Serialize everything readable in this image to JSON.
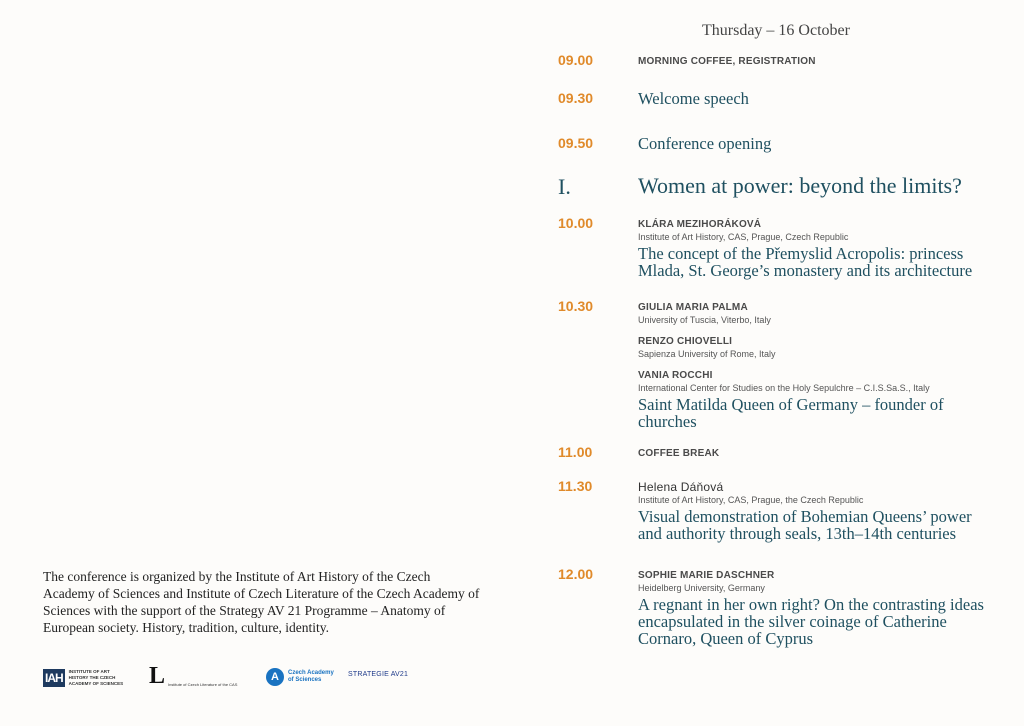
{
  "day_header": "Thursday – 16 October",
  "program": [
    {
      "time": "09.00",
      "label": "MORNING COFFEE, REGISTRATION"
    },
    {
      "time": "09.30",
      "title": "Welcome speech"
    },
    {
      "time": "09.50",
      "title": "Conference opening"
    },
    {
      "time": "I.",
      "section_title": "Women at power: beyond the limits?"
    },
    {
      "time": "10.00",
      "speakers": [
        {
          "name": "KLÁRA MEZIHORÁKOVÁ",
          "affiliation": "Institute of Art History, CAS, Prague, Czech Republic"
        }
      ],
      "title": "The concept of the Přemyslid Acropolis: princess Mlada, St. George’s monastery and its architecture"
    },
    {
      "time": "10.30",
      "speakers": [
        {
          "name": "GIULIA MARIA PALMA",
          "affiliation": "University of Tuscia, Viterbo, Italy"
        },
        {
          "name": "RENZO CHIOVELLI",
          "affiliation": "Sapienza University of Rome, Italy"
        },
        {
          "name": "VANIA ROCCHI",
          "affiliation": "International Center for Studies on the Holy Sepulchre – C.I.S.Sa.S., Italy"
        }
      ],
      "title": "Saint Matilda Queen of Germany – founder of churches"
    },
    {
      "time": "11.00",
      "label": "COFFEE BREAK"
    },
    {
      "time": "11.30",
      "speakers": [
        {
          "name": "Helena Dáňová",
          "affiliation": "Institute of Art History, CAS, Prague, the Czech Republic"
        }
      ],
      "title": "Visual demonstration of Bohemian Queens’ power and authority through seals, 13th–14th centuries"
    },
    {
      "time": "12.00",
      "speakers": [
        {
          "name": "SOPHIE MARIE DASCHNER",
          "affiliation": "Heidelberg University, Germany"
        }
      ],
      "title": "A regnant in her own right? On the contrasting ideas encapsulated in the silver coinage of Catherine Cornaro, Queen of Cyprus"
    }
  ],
  "organizer_note": "The conference is organized by the Institute of Art History of the Czech Academy of Sciences and Institute of Czech Literature of the Czech Academy of Sciences with the support of the Strategy AV 21 Programme – Anatomy of European society. History, tradition, culture, identity.",
  "logos": {
    "iah": {
      "mark": "IAH",
      "text": "INSTITUTE OF ART HISTORY THE CZECH ACADEMY OF SCIENCES"
    },
    "icl": {
      "mark": "L",
      "text": "Institute of Czech Literature of the CAS"
    },
    "cas": {
      "mark": "A",
      "text": "Czech Academy of Sciences"
    },
    "strategy": {
      "text": "STRATEGIE AV21"
    }
  },
  "colors": {
    "time": "#e08a2a",
    "title": "#1f5060",
    "background": "#fdfcfa"
  }
}
